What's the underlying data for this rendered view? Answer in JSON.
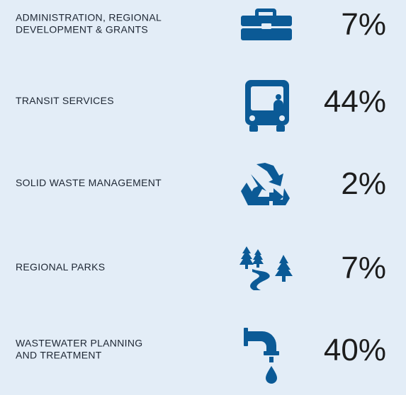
{
  "items": [
    {
      "label": [
        "ADMINISTRATION, REGIONAL",
        "DEVELOPMENT & GRANTS"
      ],
      "value": "7%"
    },
    {
      "label": [
        "TRANSIT SERVICES"
      ],
      "value": "44%"
    },
    {
      "label": [
        "SOLID WASTE MANAGEMENT"
      ],
      "value": "2%"
    },
    {
      "label": [
        "REGIONAL PARKS"
      ],
      "value": "7%"
    },
    {
      "label": [
        "WASTEWATER PLANNING",
        "AND TREATMENT"
      ],
      "value": "40%"
    }
  ]
}
